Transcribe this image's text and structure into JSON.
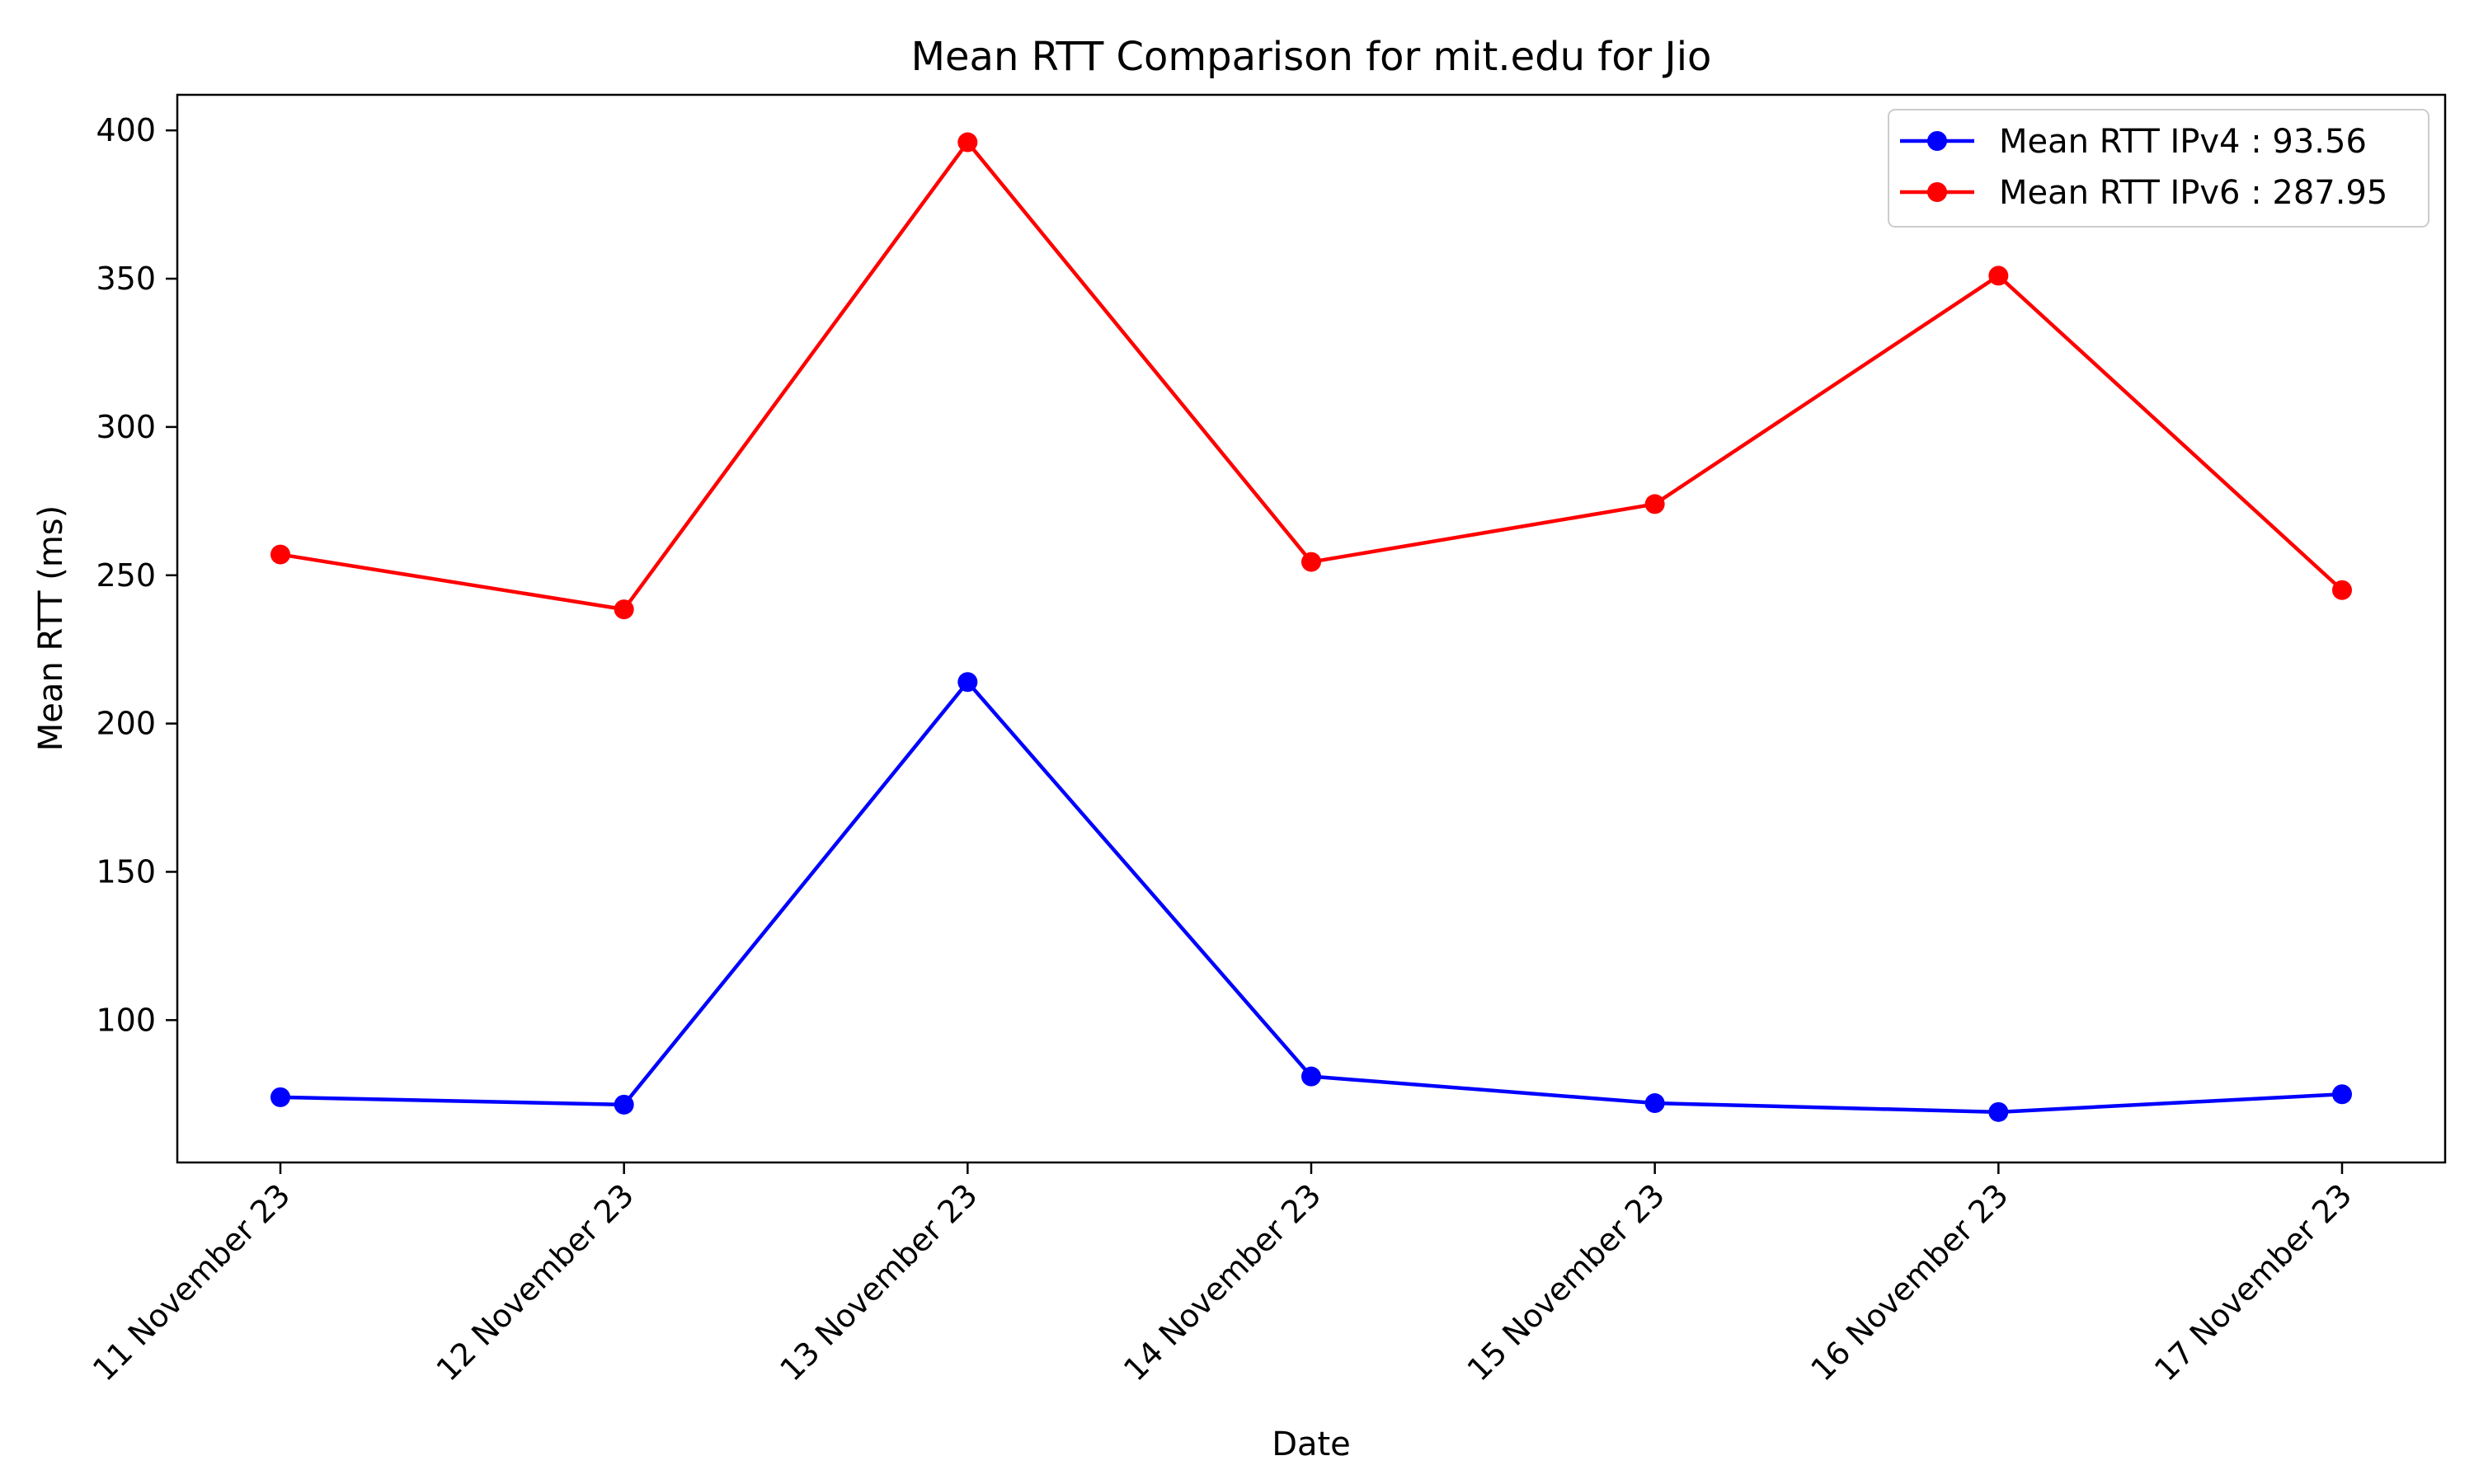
{
  "chart_data": {
    "type": "line",
    "title": "Mean RTT Comparison for mit.edu for Jio",
    "xlabel": "Date",
    "ylabel": "Mean RTT (ms)",
    "categories": [
      "11 November 23",
      "12 November 23",
      "13 November 23",
      "14 November 23",
      "15 November 23",
      "16 November 23",
      "17 November 23"
    ],
    "yticks": [
      100,
      150,
      200,
      250,
      300,
      350,
      400
    ],
    "ylim": [
      52,
      412
    ],
    "grid": false,
    "legend_position": "top-right",
    "series": [
      {
        "name": "Mean RTT IPv4 : 93.56",
        "color": "#0000ff",
        "marker": "circle",
        "values": [
          74,
          71.5,
          214,
          81,
          72,
          69,
          75
        ]
      },
      {
        "name": "Mean RTT IPv6 : 287.95",
        "color": "#ff0000",
        "marker": "circle",
        "values": [
          257,
          238.5,
          396,
          254.5,
          274,
          351,
          245
        ]
      }
    ]
  }
}
